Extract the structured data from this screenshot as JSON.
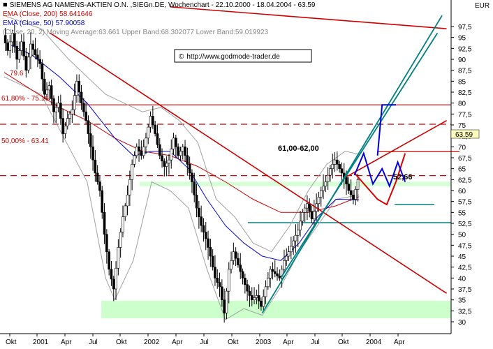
{
  "chart_data": {
    "type": "candlestick",
    "title": "SIEMENS AG NAMENS-AKTIEN O.N. ,SIEGn.DE, Wochenchart - 22.10.2000 - 18.04.2004 - 63.59",
    "currency": "EUR",
    "current_price_label": "63.59",
    "current_price": 63.59,
    "watermark": "http://www.godmode-trader.de",
    "watermark_symbol": "©",
    "legend": [
      {
        "text": "EMA (Close, 200) 58.641646",
        "color": "#cc0000"
      },
      {
        "text": "EMA (Close, 50) 57.90058",
        "color": "#0000cc"
      },
      {
        "text": "(Close, 20, 2) Moving Average:63.661 Upper Band:68.302077 Lower Band:59.019923",
        "color": "#888888"
      }
    ],
    "y_axis": {
      "min": 29.5,
      "max": 100,
      "ticks": [
        "30",
        "32,5",
        "35",
        "37,5",
        "40",
        "42,5",
        "45",
        "47,5",
        "50",
        "52,5",
        "55",
        "57,5",
        "60",
        "62,5",
        "65",
        "67,5",
        "70",
        "72,5",
        "75",
        "77,5",
        "80",
        "82,5",
        "85",
        "87,5",
        "90",
        "92,5",
        "95",
        "97,5"
      ],
      "tick_values": [
        30,
        32.5,
        35,
        37.5,
        40,
        42.5,
        45,
        47.5,
        50,
        52.5,
        55,
        57.5,
        60,
        62.5,
        65,
        67.5,
        70,
        72.5,
        75,
        77.5,
        80,
        82.5,
        85,
        87.5,
        90,
        92.5,
        95,
        97.5
      ]
    },
    "x_axis": {
      "labels": [
        "Okt",
        "2001",
        "Apr",
        "Jul",
        "Okt",
        "2002",
        "Apr",
        "Jul",
        "Okt",
        "2003",
        "Apr",
        "Jul",
        "Okt",
        "2004",
        "Apr"
      ]
    },
    "horizontal_levels": [
      {
        "value": 79.6,
        "label": "79.6",
        "style": "solid",
        "color": "#cc0000"
      },
      {
        "value": 75.16,
        "label": "61,80% - 75.16",
        "style": "dashed",
        "color": "#cc0000"
      },
      {
        "value": 68.9,
        "label": "",
        "style": "solid",
        "color": "#cc0000"
      },
      {
        "value": 63.41,
        "label": "50,00% - 63.41",
        "style": "dashed",
        "color": "#cc0000"
      },
      {
        "value": 52.66,
        "label": "",
        "style": "solid",
        "color": "#008080"
      },
      {
        "value": 56.8,
        "label": "",
        "style": "solid",
        "color": "#008080"
      }
    ],
    "annotations": [
      {
        "text": "61,00-62,00"
      },
      {
        "text": "52,66"
      }
    ],
    "support_zone": {
      "low": 30.8,
      "high": 34.8,
      "color": "#ccffcc"
    },
    "resistance_band": {
      "low": 61.0,
      "high": 62.0,
      "color": "#ccffcc"
    },
    "price_path": [
      [
        0.0,
        95.5
      ],
      [
        0.5,
        92.0
      ],
      [
        1.0,
        96.0
      ],
      [
        1.5,
        90.0
      ],
      [
        2.0,
        94.0
      ],
      [
        2.5,
        87.5
      ],
      [
        3.0,
        93.5
      ],
      [
        3.5,
        91.0
      ],
      [
        4.0,
        89.0
      ],
      [
        4.5,
        82.0
      ],
      [
        5.0,
        84.0
      ],
      [
        5.5,
        78.0
      ],
      [
        6.0,
        80.0
      ],
      [
        6.5,
        73.0
      ],
      [
        7.0,
        76.5
      ],
      [
        7.5,
        78.5
      ],
      [
        8.0,
        85.0
      ],
      [
        8.5,
        80.0
      ],
      [
        9.0,
        76.0
      ],
      [
        9.5,
        70.0
      ],
      [
        10.0,
        64.0
      ],
      [
        10.5,
        60.0
      ],
      [
        11.0,
        50.0
      ],
      [
        11.5,
        42.0
      ],
      [
        12.0,
        37.5
      ],
      [
        12.5,
        47.0
      ],
      [
        13.0,
        54.0
      ],
      [
        13.5,
        59.0
      ],
      [
        14.0,
        66.0
      ],
      [
        14.5,
        70.0
      ],
      [
        15.0,
        68.0
      ],
      [
        15.5,
        72.0
      ],
      [
        16.0,
        77.0
      ],
      [
        16.5,
        73.0
      ],
      [
        17.0,
        68.0
      ],
      [
        17.5,
        65.5
      ],
      [
        18.0,
        67.0
      ],
      [
        18.5,
        72.0
      ],
      [
        19.0,
        68.0
      ],
      [
        19.5,
        70.0
      ],
      [
        20.0,
        66.0
      ],
      [
        20.5,
        62.0
      ],
      [
        21.0,
        56.0
      ],
      [
        21.5,
        52.0
      ],
      [
        22.0,
        49.0
      ],
      [
        22.5,
        45.0
      ],
      [
        23.0,
        40.0
      ],
      [
        23.5,
        38.0
      ],
      [
        24.0,
        32.0
      ],
      [
        24.5,
        42.0
      ],
      [
        25.0,
        46.0
      ],
      [
        25.5,
        43.0
      ],
      [
        26.0,
        40.0
      ],
      [
        26.5,
        37.0
      ],
      [
        27.0,
        35.0
      ],
      [
        27.5,
        36.0
      ],
      [
        28.0,
        33.5
      ],
      [
        28.5,
        38.0
      ],
      [
        29.0,
        42.0
      ],
      [
        29.5,
        41.0
      ],
      [
        30.0,
        40.0
      ],
      [
        30.5,
        44.0
      ],
      [
        31.0,
        46.0
      ],
      [
        31.5,
        48.5
      ],
      [
        32.0,
        51.0
      ],
      [
        32.5,
        55.0
      ],
      [
        33.0,
        57.0
      ],
      [
        33.5,
        53.5
      ],
      [
        34.0,
        57.0
      ],
      [
        34.5,
        60.0
      ],
      [
        35.0,
        62.0
      ],
      [
        35.5,
        65.0
      ],
      [
        36.0,
        67.0
      ],
      [
        36.5,
        65.0
      ],
      [
        37.0,
        63.0
      ],
      [
        37.5,
        60.0
      ],
      [
        38.0,
        58.0
      ],
      [
        38.5,
        62.5
      ]
    ],
    "ema200_path": [
      [
        0.0,
        87.0
      ],
      [
        3.0,
        83.0
      ],
      [
        6.0,
        79.0
      ],
      [
        9.0,
        76.0
      ],
      [
        12.0,
        72.0
      ],
      [
        15.0,
        69.0
      ],
      [
        18.0,
        68.0
      ],
      [
        21.0,
        65.5
      ],
      [
        24.0,
        62.0
      ],
      [
        27.0,
        58.0
      ],
      [
        30.0,
        55.0
      ],
      [
        33.0,
        55.0
      ],
      [
        36.0,
        56.5
      ],
      [
        38.5,
        58.6
      ]
    ],
    "ema50_path": [
      [
        0.0,
        94.0
      ],
      [
        3.0,
        91.0
      ],
      [
        6.0,
        86.0
      ],
      [
        9.0,
        80.0
      ],
      [
        12.0,
        72.0
      ],
      [
        14.0,
        68.0
      ],
      [
        16.0,
        69.0
      ],
      [
        18.0,
        69.0
      ],
      [
        20.0,
        65.0
      ],
      [
        22.0,
        58.0
      ],
      [
        24.0,
        52.0
      ],
      [
        26.0,
        48.0
      ],
      [
        28.0,
        45.0
      ],
      [
        30.0,
        44.0
      ],
      [
        32.0,
        48.0
      ],
      [
        34.0,
        54.0
      ],
      [
        36.0,
        58.0
      ],
      [
        38.5,
        57.9
      ]
    ],
    "bollinger_upper_path": [
      [
        0.0,
        100.0
      ],
      [
        4.0,
        97.0
      ],
      [
        7.0,
        90.0
      ],
      [
        9.0,
        86.0
      ],
      [
        11.0,
        82.0
      ],
      [
        13.0,
        80.0
      ],
      [
        15.0,
        78.0
      ],
      [
        17.0,
        79.0
      ],
      [
        19.0,
        76.0
      ],
      [
        21.0,
        71.0
      ],
      [
        23.0,
        58.0
      ],
      [
        25.0,
        54.0
      ],
      [
        27.0,
        48.0
      ],
      [
        29.0,
        46.0
      ],
      [
        31.0,
        52.0
      ],
      [
        33.0,
        60.0
      ],
      [
        35.0,
        66.0
      ],
      [
        37.0,
        69.0
      ],
      [
        38.5,
        68.3
      ]
    ],
    "bollinger_lower_path": [
      [
        0.0,
        86.0
      ],
      [
        4.0,
        82.0
      ],
      [
        7.0,
        70.0
      ],
      [
        9.0,
        62.0
      ],
      [
        11.0,
        40.0
      ],
      [
        12.0,
        35.0
      ],
      [
        14.0,
        44.0
      ],
      [
        16.0,
        62.0
      ],
      [
        18.0,
        60.0
      ],
      [
        20.0,
        56.0
      ],
      [
        22.0,
        42.0
      ],
      [
        24.0,
        30.5
      ],
      [
        26.0,
        33.0
      ],
      [
        28.0,
        31.5
      ],
      [
        30.0,
        38.0
      ],
      [
        32.0,
        46.0
      ],
      [
        34.0,
        52.0
      ],
      [
        36.0,
        58.0
      ],
      [
        38.5,
        59.0
      ]
    ],
    "trendlines": [
      {
        "color": "#cc0000",
        "from": [
          5.0,
          96.0
        ],
        "to": [
          48.0,
          36.5
        ]
      },
      {
        "color": "#cc0000",
        "from": [
          18.0,
          102.0
        ],
        "to": [
          48.0,
          97.0
        ]
      },
      {
        "color": "#cc0000",
        "from": [
          37.0,
          63.0
        ],
        "to": [
          48.0,
          76.0
        ]
      },
      {
        "color": "#008080",
        "from": [
          28.0,
          32.0
        ],
        "to": [
          47.5,
          100.0
        ]
      },
      {
        "color": "#008080",
        "from": [
          30.0,
          40.0
        ],
        "to": [
          47.0,
          96.0
        ]
      }
    ],
    "scenario_blue": [
      [
        38.0,
        63.5
      ],
      [
        39.0,
        68.5
      ],
      [
        40.0,
        61.5
      ],
      [
        41.0,
        65.0
      ],
      [
        41.8,
        61.0
      ],
      [
        42.7,
        66.5
      ],
      [
        43.5,
        62.0
      ]
    ],
    "scenario_red": [
      [
        38.0,
        64.0
      ],
      [
        40.5,
        58.0
      ],
      [
        41.5,
        56.8
      ],
      [
        42.5,
        62.0
      ],
      [
        43.5,
        68.5
      ]
    ],
    "projection_blue_up": [
      [
        40.5,
        68.0
      ],
      [
        41.0,
        79.6
      ],
      [
        42.5,
        79.6
      ]
    ]
  }
}
